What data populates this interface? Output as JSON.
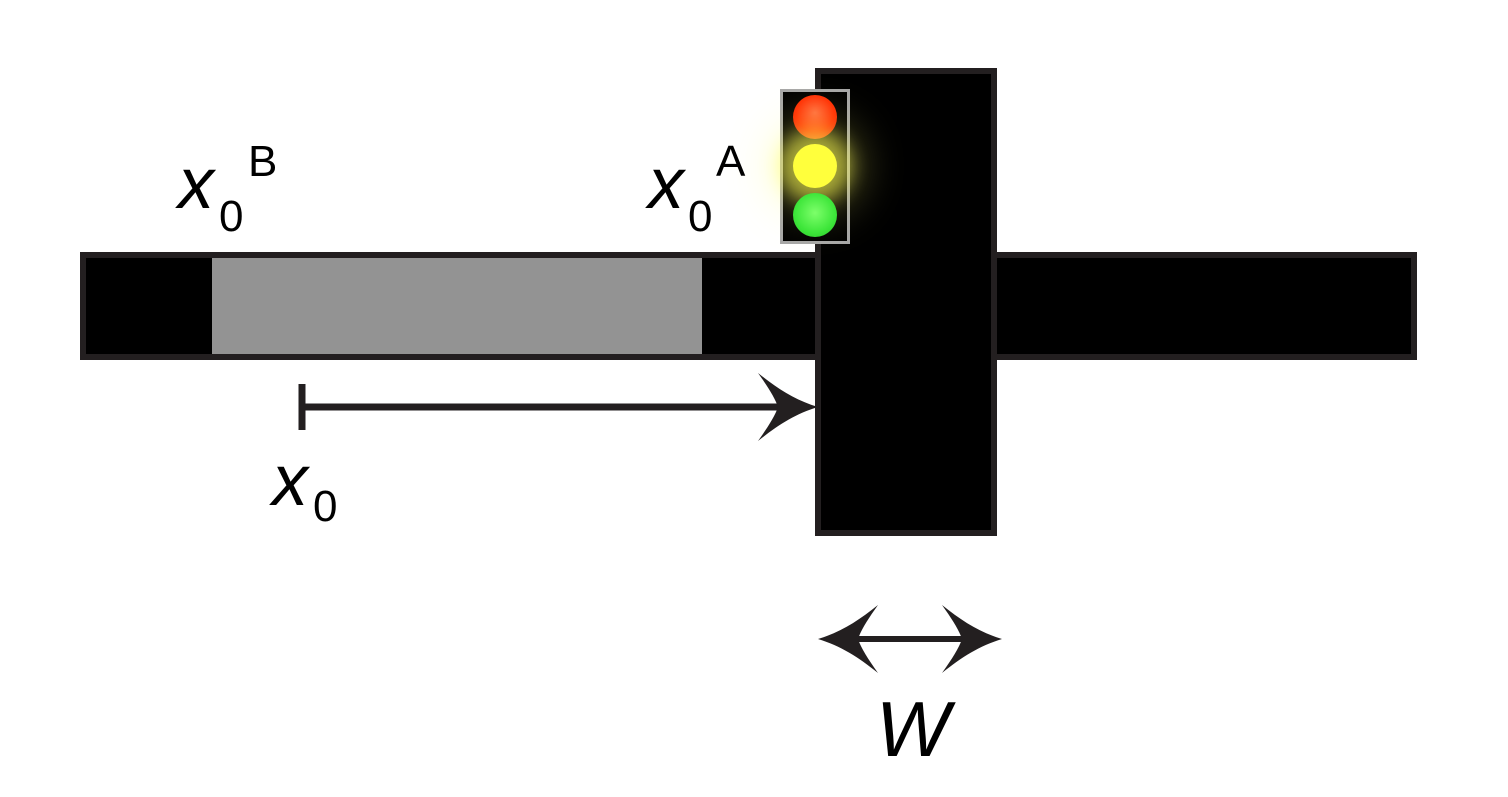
{
  "diagram": {
    "labels": {
      "x0_b": {
        "main": "x",
        "sub": "0",
        "sup": "B"
      },
      "x0_a": {
        "main": "x",
        "sub": "0",
        "sup": "A"
      },
      "x0": {
        "main": "x",
        "sub": "0"
      },
      "w": "W"
    },
    "traffic_light": {
      "lamps": [
        "red",
        "yellow",
        "green"
      ],
      "active_lamp": "yellow"
    },
    "colors": {
      "road": "#000000",
      "outline": "#231f20",
      "vehicle_region": "#939393",
      "red_lamp": "#ff2a00",
      "yellow_lamp": "#ffff3c",
      "green_lamp": "#3ee63a"
    }
  }
}
